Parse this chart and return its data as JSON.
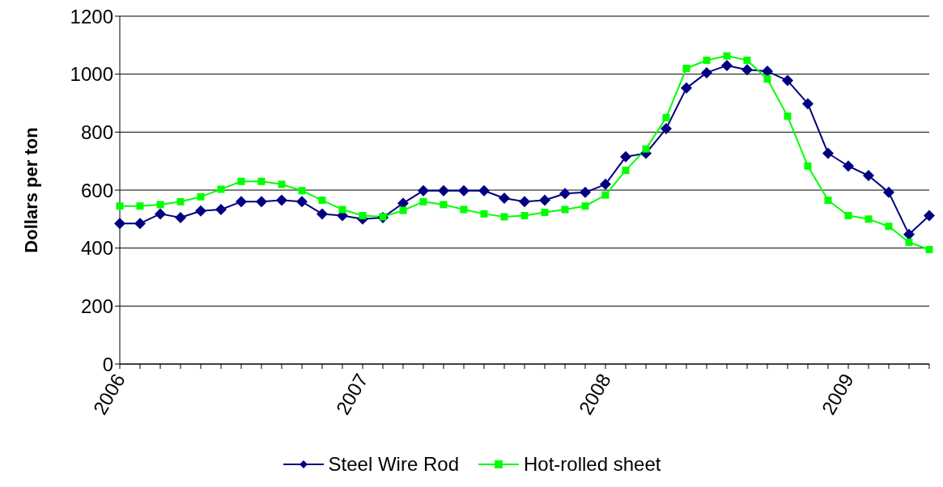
{
  "chart_data": {
    "type": "line",
    "ylabel": "Dollars per ton",
    "categories": [
      "2006",
      null,
      null,
      null,
      null,
      null,
      null,
      null,
      null,
      null,
      null,
      null,
      "2007",
      null,
      null,
      null,
      null,
      null,
      null,
      null,
      null,
      null,
      null,
      null,
      "2008",
      null,
      null,
      null,
      null,
      null,
      null,
      null,
      null,
      null,
      null,
      null,
      "2009",
      null,
      null,
      null,
      null
    ],
    "series": [
      {
        "name": "Steel Wire Rod",
        "color": "#000080",
        "marker": "diamond",
        "values": [
          485,
          485,
          518,
          505,
          528,
          533,
          560,
          560,
          565,
          560,
          518,
          512,
          500,
          505,
          555,
          598,
          598,
          598,
          598,
          572,
          560,
          565,
          588,
          592,
          620,
          715,
          727,
          812,
          952,
          1005,
          1030,
          1015,
          1010,
          978,
          898,
          727,
          683,
          650,
          592,
          447,
          512
        ]
      },
      {
        "name": "Hot-rolled sheet",
        "color": "#00ff00",
        "marker": "square",
        "values": [
          545,
          545,
          550,
          560,
          577,
          603,
          630,
          630,
          620,
          598,
          565,
          533,
          512,
          508,
          530,
          560,
          550,
          533,
          518,
          508,
          512,
          523,
          533,
          545,
          583,
          668,
          742,
          850,
          1020,
          1048,
          1063,
          1048,
          983,
          855,
          683,
          565,
          512,
          500,
          475,
          420,
          395
        ]
      }
    ],
    "ylim": [
      0,
      1200
    ],
    "yticks": [
      0,
      200,
      400,
      600,
      800,
      1000,
      1200
    ],
    "grid": "y",
    "legend": "bottom",
    "line_style": "solid"
  }
}
